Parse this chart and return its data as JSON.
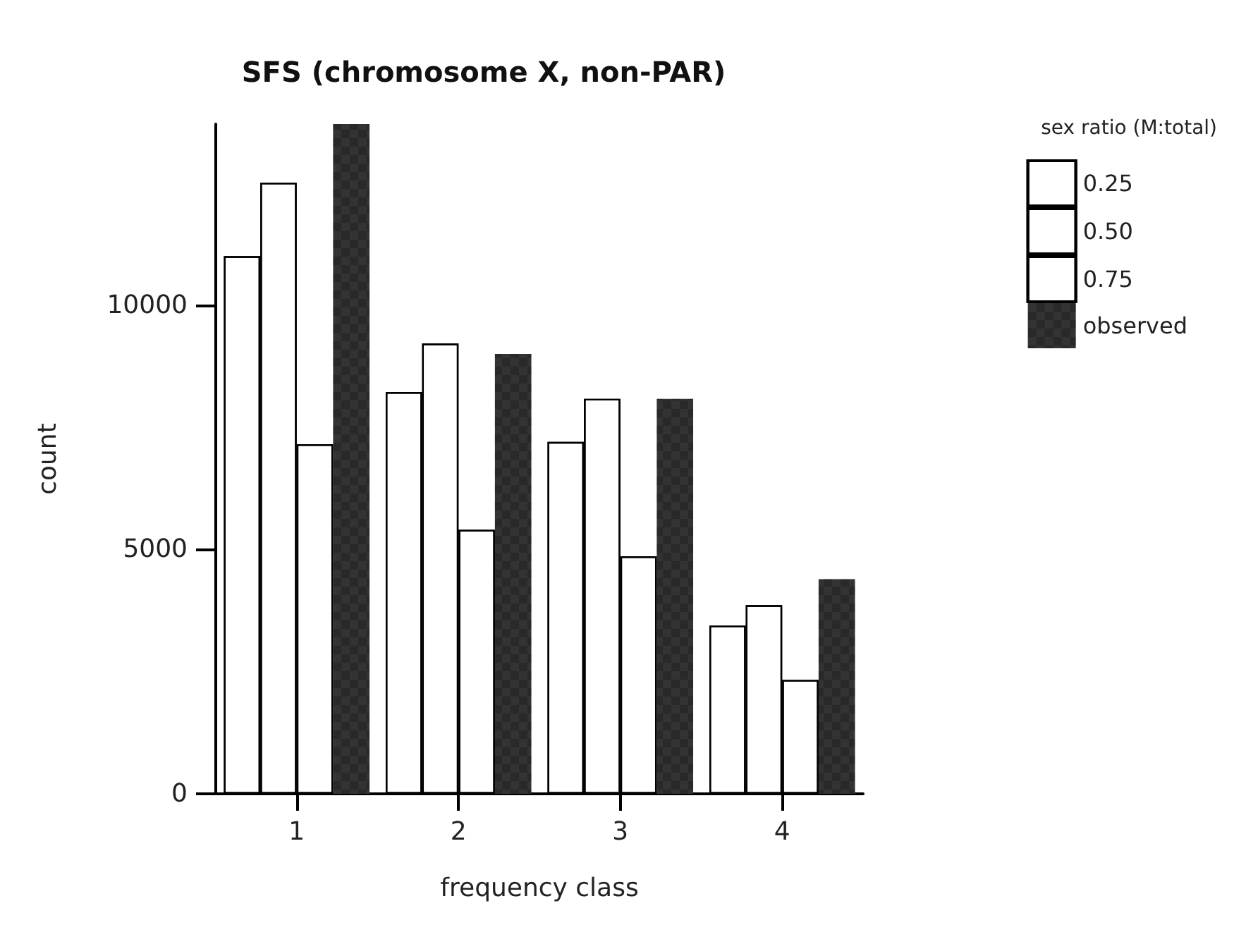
{
  "chart_data": {
    "type": "bar",
    "title": "SFS (chromosome X, non-PAR)",
    "xlabel": "frequency class",
    "ylabel": "count",
    "legend_title": "sex ratio (M:total)",
    "categories": [
      "1",
      "2",
      "3",
      "4"
    ],
    "series": [
      {
        "name": "0.25",
        "color": "#ffffff",
        "values": [
          11000,
          8220,
          7200,
          3440
        ]
      },
      {
        "name": "0.50",
        "color": "#ffffff",
        "values": [
          12500,
          9210,
          8080,
          3860
        ]
      },
      {
        "name": "0.75",
        "color": "#ffffff",
        "values": [
          7150,
          5400,
          4860,
          2330
        ]
      },
      {
        "name": "observed",
        "color": "#333333",
        "values": [
          13700,
          9000,
          8080,
          4390
        ]
      }
    ],
    "ylim": [
      0,
      13700
    ],
    "yticks": [
      0,
      5000,
      10000
    ],
    "grid": false,
    "legend": "top right"
  }
}
